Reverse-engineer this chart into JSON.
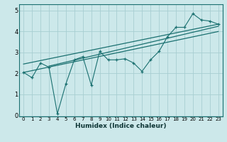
{
  "xlabel": "Humidex (Indice chaleur)",
  "ylabel": "",
  "bg_color": "#cce8ea",
  "grid_color": "#a8ced2",
  "line_color": "#1a7070",
  "xlim": [
    -0.5,
    23.5
  ],
  "ylim": [
    -0.05,
    5.3
  ],
  "xticks": [
    0,
    1,
    2,
    3,
    4,
    5,
    6,
    7,
    8,
    9,
    10,
    11,
    12,
    13,
    14,
    15,
    16,
    17,
    18,
    19,
    20,
    21,
    22,
    23
  ],
  "yticks": [
    0,
    1,
    2,
    3,
    4,
    5
  ],
  "scatter_x": [
    0,
    1,
    2,
    3,
    4,
    5,
    6,
    7,
    8,
    9,
    10,
    11,
    12,
    13,
    14,
    15,
    16,
    17,
    18,
    19,
    20,
    21,
    22,
    23
  ],
  "scatter_y": [
    2.05,
    1.8,
    2.5,
    2.3,
    0.08,
    1.5,
    2.65,
    2.8,
    1.45,
    3.05,
    2.65,
    2.65,
    2.7,
    2.5,
    2.1,
    2.65,
    3.05,
    3.75,
    4.2,
    4.2,
    4.85,
    4.55,
    4.5,
    4.35
  ],
  "line1_x": [
    0,
    23
  ],
  "line1_y": [
    2.05,
    4.0
  ],
  "line2_x": [
    0,
    23
  ],
  "line2_y": [
    2.45,
    4.35
  ],
  "line3_x": [
    3,
    23
  ],
  "line3_y": [
    2.35,
    4.25
  ]
}
